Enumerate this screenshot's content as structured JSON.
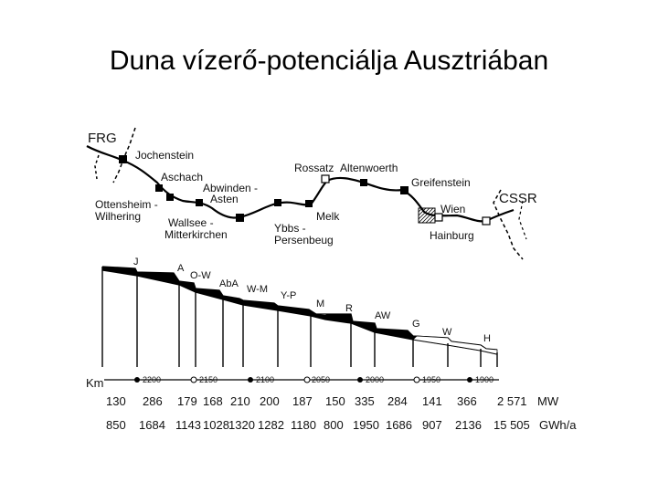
{
  "title": "Duna vízerő-potenciálja Ausztriában",
  "countries": [
    "FRG",
    "CSSR"
  ],
  "map_labels": {
    "jochenstein": "Jochenstein",
    "aschach": "Aschach",
    "abwinden1": "Abwinden -",
    "abwinden2": "Asten",
    "ottensheim1": "Ottensheim -",
    "ottensheim2": "Wilhering",
    "wallsee1": "Wallsee -",
    "wallsee2": "Mitterkirchen",
    "ybbs1": "Ybbs -",
    "ybbs2": "Persenbeug",
    "melk": "Melk",
    "rossatz": "Rossatz",
    "altenwoerth": "Altenwoerth",
    "greifenstein": "Greifenstein",
    "wien": "Wien",
    "hainburg": "Hainburg"
  },
  "profile_labels": [
    "J",
    "A",
    "O-W",
    "AbA",
    "W-M",
    "Y-P",
    "M",
    "R",
    "AW",
    "G",
    "W",
    "H"
  ],
  "km_label": "Km",
  "km_ticks": [
    "2200",
    "2150",
    "2100",
    "2050",
    "2000",
    "1950",
    "1900"
  ],
  "mw_values": [
    "130",
    "286",
    "179",
    "168",
    "210",
    "200",
    "187",
    "150",
    "335",
    "284",
    "141",
    "366",
    "2 571"
  ],
  "mw_unit": "MW",
  "gwh_values": [
    "850",
    "1684",
    "1143",
    "1028",
    "1320",
    "1282",
    "1180",
    "800",
    "1950",
    "1686",
    "907",
    "2136",
    "15 505"
  ],
  "gwh_unit": "GWh/a"
}
